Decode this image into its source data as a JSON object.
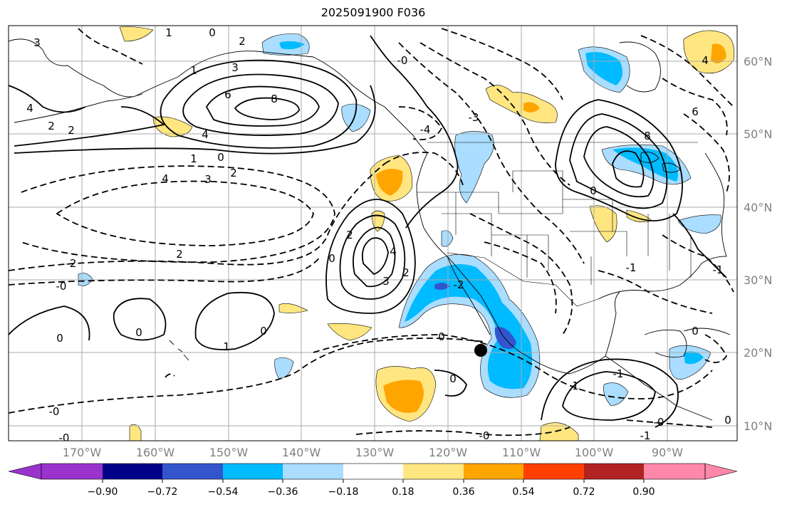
{
  "title": "2025091900 F036",
  "map": {
    "projection": "plate-carree",
    "lon_range": [
      -179,
      -80
    ],
    "lat_range": [
      8,
      65
    ],
    "lat_ticks": [
      "10°N",
      "20°N",
      "30°N",
      "40°N",
      "50°N",
      "60°N"
    ],
    "lon_ticks": [
      "170°W",
      "160°W",
      "150°W",
      "140°W",
      "130°W",
      "120°W",
      "110°W",
      "100°W",
      "90°W"
    ],
    "grid": true,
    "marker": {
      "name": "storm-center-marker",
      "lon": -114.5,
      "lat": 20.3
    },
    "contour_labels": [
      "3",
      "1",
      "0",
      "2",
      "3",
      "1",
      "6",
      "8",
      "4",
      "2",
      "4",
      "2",
      "1",
      "0",
      "2",
      "4",
      "3",
      "2",
      "0",
      "2",
      "4",
      "2",
      "3",
      "-2",
      "-2",
      "-0",
      "0",
      "0",
      "1",
      "0",
      "0",
      "-0",
      "-0",
      "0",
      "-0",
      "1",
      "-4",
      "-3",
      "-0",
      "4",
      "6",
      "8",
      "0",
      "-1",
      "-1",
      "-1",
      "-1",
      "0",
      "-0",
      "0"
    ]
  },
  "colorbar": {
    "ticks": [
      "−0.90",
      "−0.72",
      "−0.54",
      "−0.36",
      "−0.18",
      "0.18",
      "0.36",
      "0.54",
      "0.72",
      "0.90"
    ],
    "colors": [
      "#9933cc",
      "#000088",
      "#3355cc",
      "#00bbff",
      "#aaddff",
      "#ffffff",
      "#ffe680",
      "#ffa500",
      "#ff4000",
      "#b22222",
      "#ff88aa"
    ],
    "extend": "both"
  }
}
